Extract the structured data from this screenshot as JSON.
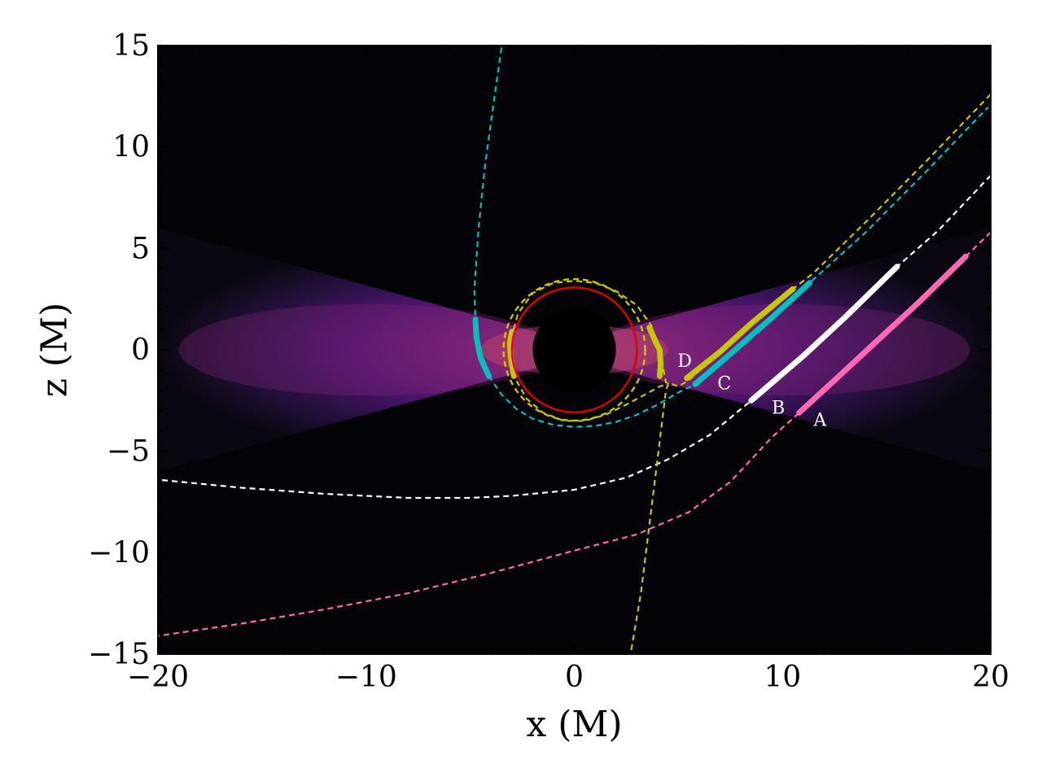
{
  "chart_data": {
    "type": "line",
    "title": "",
    "xlabel": "x (M)",
    "ylabel": "z (M)",
    "xlim": [
      -20,
      20
    ],
    "ylim": [
      -15,
      15
    ],
    "xticks": [
      -20,
      -10,
      0,
      10,
      20
    ],
    "xtick_labels": [
      "−20",
      "−10",
      "0",
      "10",
      "20"
    ],
    "yticks": [
      -15,
      -10,
      -5,
      0,
      5,
      10,
      15
    ],
    "ytick_labels": [
      "−15",
      "−10",
      "−5",
      "0",
      "5",
      "10",
      "15"
    ],
    "grid": false,
    "legend": "none",
    "background": {
      "description": "emission density of a thick accretion disk around a black hole, darker away from the equatorial plane",
      "colormap": [
        "#050308",
        "#1a0b2e",
        "#3a1160",
        "#5f187c",
        "#8c2a7a",
        "#b0406e"
      ],
      "disk_extent_x": [
        -20,
        20
      ],
      "disk_half_height_at_edge": 6,
      "black_hole_radius": 2.0
    },
    "circles": [
      {
        "name": "r = 3",
        "radius": 3.0,
        "color": "#e00000",
        "style": "solid"
      },
      {
        "name": "photon-ring",
        "radius": 3.4,
        "color": "#c8c800",
        "style": "dashed"
      }
    ],
    "series": [
      {
        "label": "A",
        "color": "#ff69b4",
        "label_pos": [
          11.8,
          -3.5
        ],
        "path": [
          [
            20,
            5.8
          ],
          [
            18.8,
            4.6
          ],
          [
            16.5,
            2.3
          ],
          [
            14.5,
            0.4
          ],
          [
            12.5,
            -1.5
          ],
          [
            10.8,
            -3.1
          ],
          [
            9.5,
            -4.3
          ],
          [
            7.5,
            -6.5
          ],
          [
            5.5,
            -8.0
          ],
          [
            3.0,
            -9.1
          ],
          [
            0.0,
            -9.9
          ],
          [
            -4.0,
            -11.0
          ],
          [
            -8.0,
            -12.0
          ],
          [
            -12.0,
            -12.8
          ],
          [
            -16.0,
            -13.5
          ],
          [
            -20.0,
            -14.1
          ]
        ],
        "highlight": [
          [
            10.8,
            -3.1
          ],
          [
            12.5,
            -1.5
          ],
          [
            14.5,
            0.4
          ],
          [
            16.5,
            2.3
          ],
          [
            18.8,
            4.6
          ]
        ]
      },
      {
        "label": "B",
        "color": "#ffffff",
        "label_pos": [
          9.8,
          -2.9
        ],
        "path": [
          [
            20,
            8.6
          ],
          [
            17.5,
            5.9
          ],
          [
            15.5,
            4.1
          ],
          [
            13.0,
            1.6
          ],
          [
            11.0,
            -0.3
          ],
          [
            8.5,
            -2.5
          ],
          [
            6.5,
            -4.2
          ],
          [
            4.5,
            -5.4
          ],
          [
            2.5,
            -6.3
          ],
          [
            0.0,
            -6.9
          ],
          [
            -3.0,
            -7.2
          ],
          [
            -5.0,
            -7.3
          ],
          [
            -8.0,
            -7.3
          ],
          [
            -12.0,
            -7.1
          ],
          [
            -16.0,
            -6.8
          ],
          [
            -20.0,
            -6.4
          ]
        ],
        "highlight": [
          [
            8.5,
            -2.5
          ],
          [
            11.0,
            -0.3
          ],
          [
            13.0,
            1.6
          ],
          [
            15.5,
            4.1
          ]
        ]
      },
      {
        "label": "C",
        "color": "#00c0c0",
        "label_pos": [
          7.2,
          -1.7
        ],
        "path": [
          [
            -3.5,
            14.9
          ],
          [
            -3.9,
            12.0
          ],
          [
            -4.3,
            9.0
          ],
          [
            -4.6,
            6.0
          ],
          [
            -4.8,
            3.0
          ],
          [
            -4.75,
            1.5
          ],
          [
            -4.5,
            -0.4
          ],
          [
            -4.1,
            -1.3
          ],
          [
            -3.5,
            -2.2
          ],
          [
            -2.8,
            -2.9
          ],
          [
            -2.0,
            -3.4
          ],
          [
            -1.0,
            -3.7
          ],
          [
            0.0,
            -3.8
          ],
          [
            1.0,
            -3.75
          ],
          [
            2.0,
            -3.55
          ],
          [
            3.0,
            -3.2
          ],
          [
            4.0,
            -2.7
          ],
          [
            5.0,
            -2.1
          ],
          [
            5.8,
            -1.7
          ],
          [
            7.5,
            -0.2
          ],
          [
            9.5,
            1.6
          ],
          [
            11.3,
            3.3
          ],
          [
            14.0,
            5.8
          ],
          [
            17.0,
            8.9
          ],
          [
            20.0,
            12.1
          ]
        ],
        "highlight": [
          [
            -4.75,
            1.5
          ],
          [
            -4.7,
            0.6
          ],
          [
            -4.5,
            -0.4
          ],
          [
            -4.1,
            -1.3
          ],
          null,
          [
            5.8,
            -1.7
          ],
          [
            7.5,
            -0.2
          ],
          [
            9.5,
            1.6
          ],
          [
            11.3,
            3.3
          ]
        ]
      },
      {
        "label": "D",
        "color": "#c8c800",
        "label_pos": [
          5.3,
          -0.6
        ],
        "path": [
          [
            20.0,
            12.6
          ],
          [
            17.0,
            9.4
          ],
          [
            14.0,
            6.3
          ],
          [
            11.5,
            3.8
          ],
          [
            10.5,
            3.0
          ],
          [
            8.5,
            1.3
          ],
          [
            7.0,
            -0.1
          ],
          [
            5.5,
            -1.5
          ],
          [
            5.0,
            -1.8
          ],
          [
            4.4,
            -1.6
          ],
          [
            4.1,
            0.0
          ],
          [
            3.7,
            1.2
          ],
          [
            3.0,
            2.2
          ],
          [
            2.0,
            2.9
          ],
          [
            1.0,
            3.3
          ],
          [
            0.0,
            3.4
          ],
          [
            -1.0,
            3.3
          ],
          [
            -2.0,
            2.8
          ],
          [
            -2.7,
            1.8
          ],
          [
            -3.1,
            0.3
          ],
          [
            -2.9,
            -1.3
          ],
          [
            -2.3,
            -2.4
          ],
          [
            -1.5,
            -3.1
          ],
          [
            -0.5,
            -3.5
          ],
          [
            0.5,
            -3.5
          ],
          [
            1.5,
            -3.2
          ],
          [
            2.5,
            -2.7
          ],
          [
            3.4,
            -2.2
          ],
          [
            4.1,
            -1.8
          ],
          [
            4.5,
            -1.7
          ],
          [
            4.4,
            -2.0
          ],
          [
            4.1,
            -4.5
          ],
          [
            3.8,
            -7.0
          ],
          [
            3.5,
            -9.5
          ],
          [
            3.2,
            -12.0
          ],
          [
            2.7,
            -15.0
          ]
        ],
        "highlight": [
          [
            -3.0,
            0.9
          ],
          [
            -3.1,
            0.3
          ],
          [
            -3.05,
            -0.4
          ],
          [
            -2.9,
            -1.3
          ],
          null,
          [
            3.6,
            1.1
          ],
          [
            3.95,
            0.3
          ],
          [
            4.1,
            0.0
          ],
          [
            4.15,
            -0.7
          ],
          [
            4.1,
            -1.3
          ],
          null,
          [
            5.4,
            -1.4
          ],
          [
            7.0,
            -0.1
          ],
          [
            8.5,
            1.3
          ],
          [
            10.5,
            3.0
          ]
        ]
      }
    ]
  }
}
